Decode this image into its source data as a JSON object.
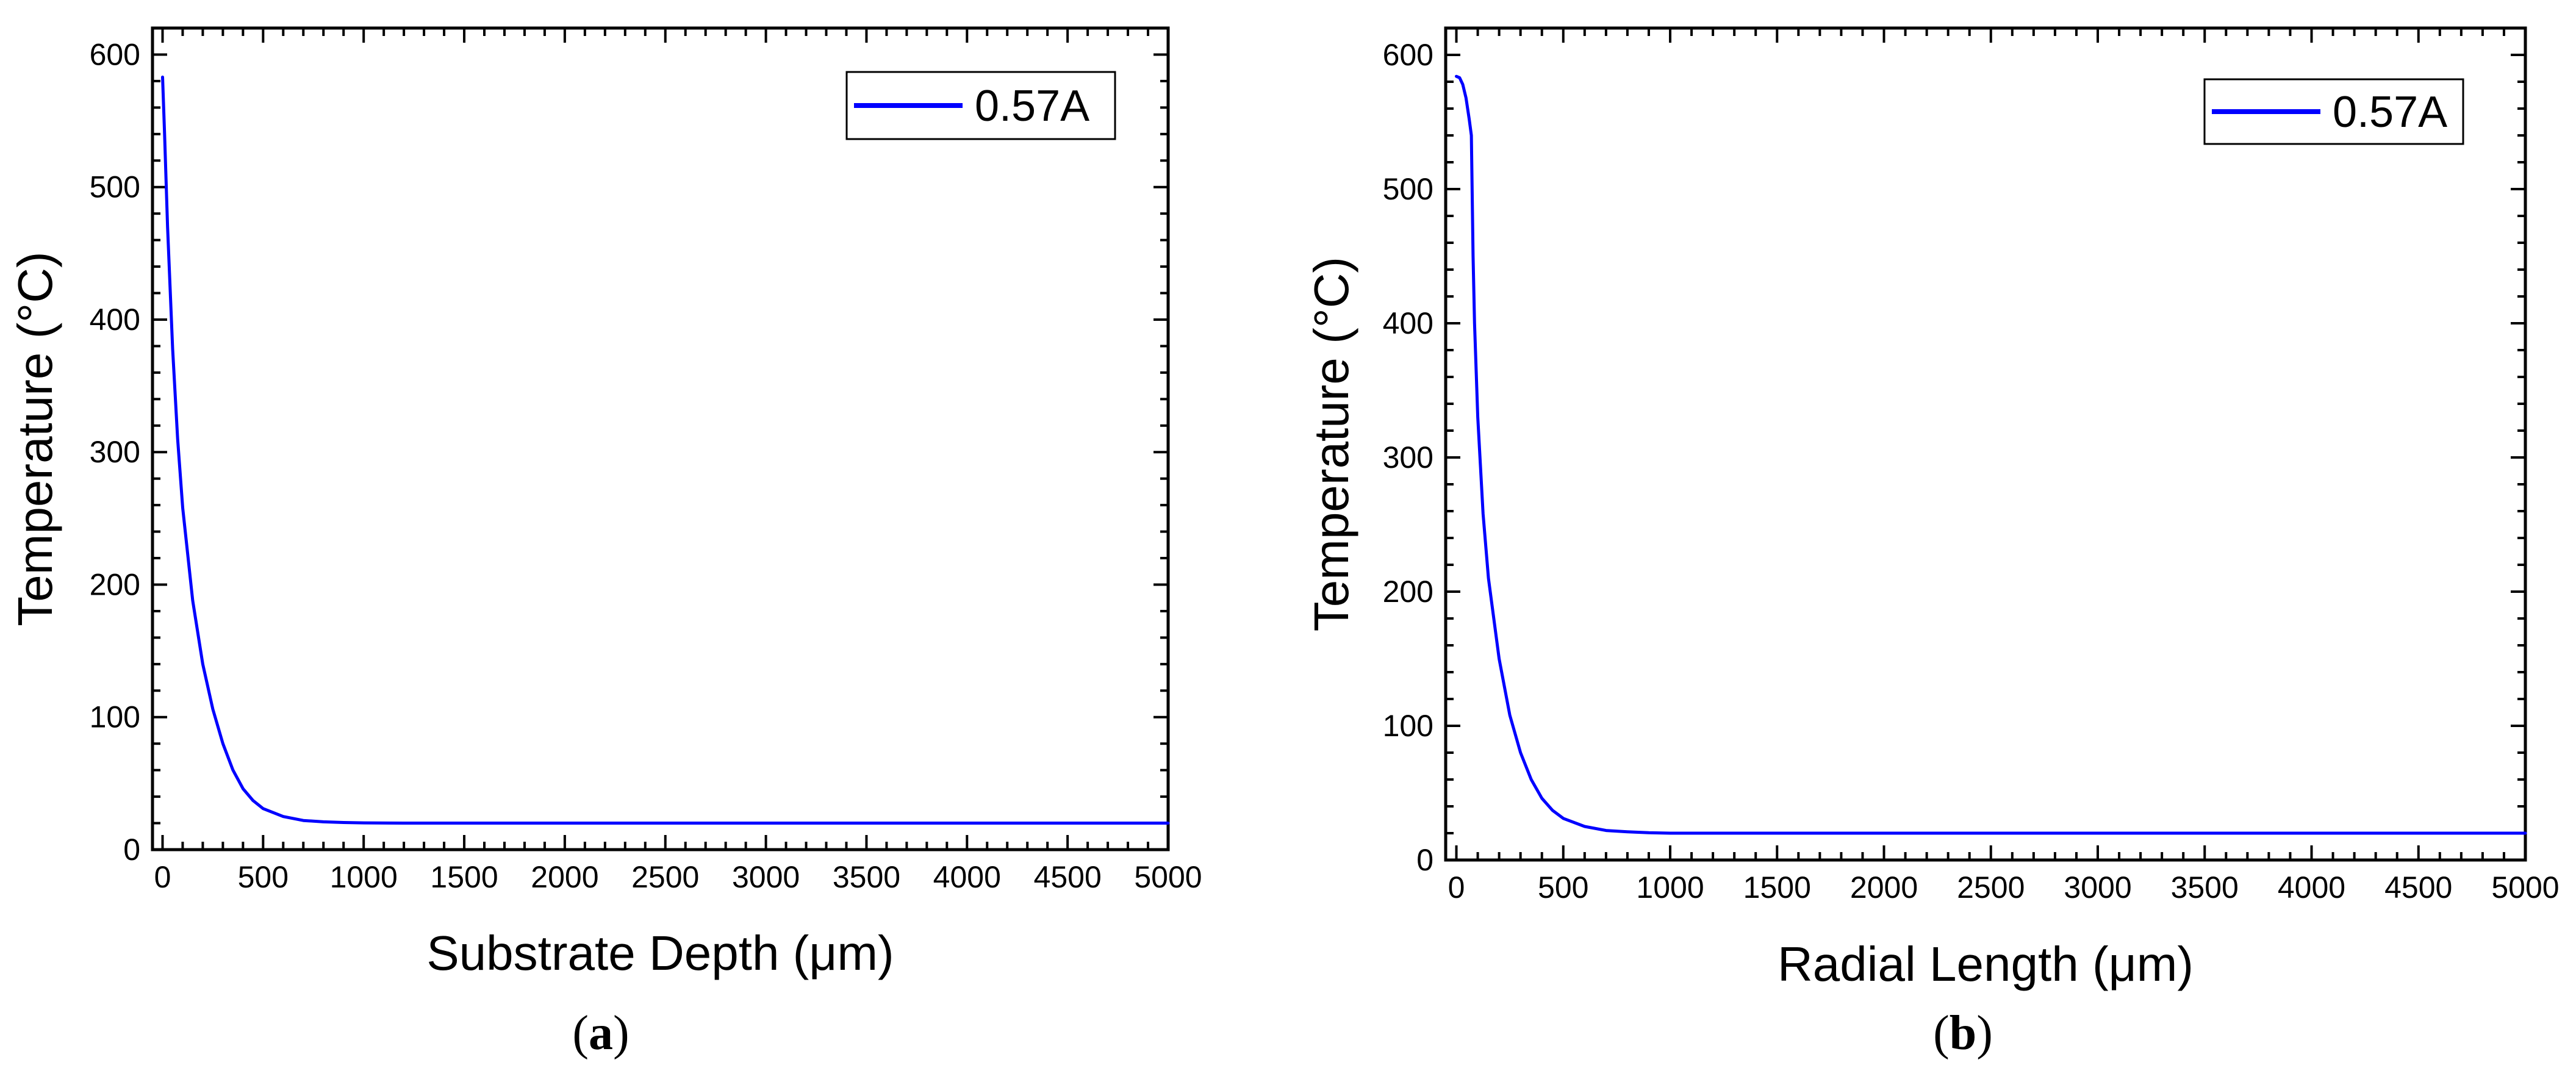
{
  "chart_data": [
    {
      "type": "line",
      "panel": "a",
      "xlabel": "Substrate Depth (μm)",
      "ylabel": "Temperature (°C)",
      "xlim": [
        -50,
        5000
      ],
      "ylim": [
        0,
        620
      ],
      "xticks": [
        0,
        500,
        1000,
        1500,
        2000,
        2500,
        3000,
        3500,
        4000,
        4500,
        5000
      ],
      "yticks": [
        0,
        100,
        200,
        300,
        400,
        500,
        600
      ],
      "grid": false,
      "legend_position": "top-right",
      "series": [
        {
          "name": "0.57A",
          "color": "#0000ff",
          "x": [
            0,
            10,
            25,
            50,
            75,
            100,
            150,
            200,
            250,
            300,
            350,
            400,
            450,
            500,
            600,
            700,
            800,
            900,
            1000,
            1200,
            1500,
            2000,
            2500,
            3000,
            3500,
            4000,
            4500,
            5000
          ],
          "y": [
            583,
            540,
            470,
            378,
            310,
            258,
            188,
            140,
            106,
            80,
            60,
            46,
            37,
            31,
            25,
            22,
            21,
            20.5,
            20.2,
            20,
            20,
            20,
            20,
            20,
            20,
            20,
            20,
            20
          ]
        }
      ]
    },
    {
      "type": "line",
      "panel": "b",
      "xlabel": "Radial Length (μm)",
      "ylabel": "Temperature (°C)",
      "xlim": [
        -50,
        5000
      ],
      "ylim": [
        0,
        620
      ],
      "xticks": [
        0,
        500,
        1000,
        1500,
        2000,
        2500,
        3000,
        3500,
        4000,
        4500,
        5000
      ],
      "yticks": [
        0,
        100,
        200,
        300,
        400,
        500,
        600
      ],
      "grid": false,
      "legend_position": "top-right",
      "series": [
        {
          "name": "0.57A",
          "color": "#0000ff",
          "x": [
            0,
            15,
            30,
            45,
            60,
            70,
            78,
            85,
            100,
            125,
            150,
            200,
            250,
            300,
            350,
            400,
            450,
            500,
            600,
            700,
            800,
            900,
            1000,
            1500,
            2000,
            2500,
            3000,
            3500,
            4000,
            4500,
            5000
          ],
          "y": [
            584,
            583,
            578,
            568,
            552,
            540,
            450,
            400,
            330,
            258,
            210,
            150,
            108,
            80,
            60,
            46,
            37,
            31,
            25,
            22,
            21,
            20.3,
            20,
            20,
            20,
            20,
            20,
            20,
            20,
            20,
            20
          ]
        }
      ]
    }
  ],
  "captions": [
    "a",
    "b"
  ]
}
